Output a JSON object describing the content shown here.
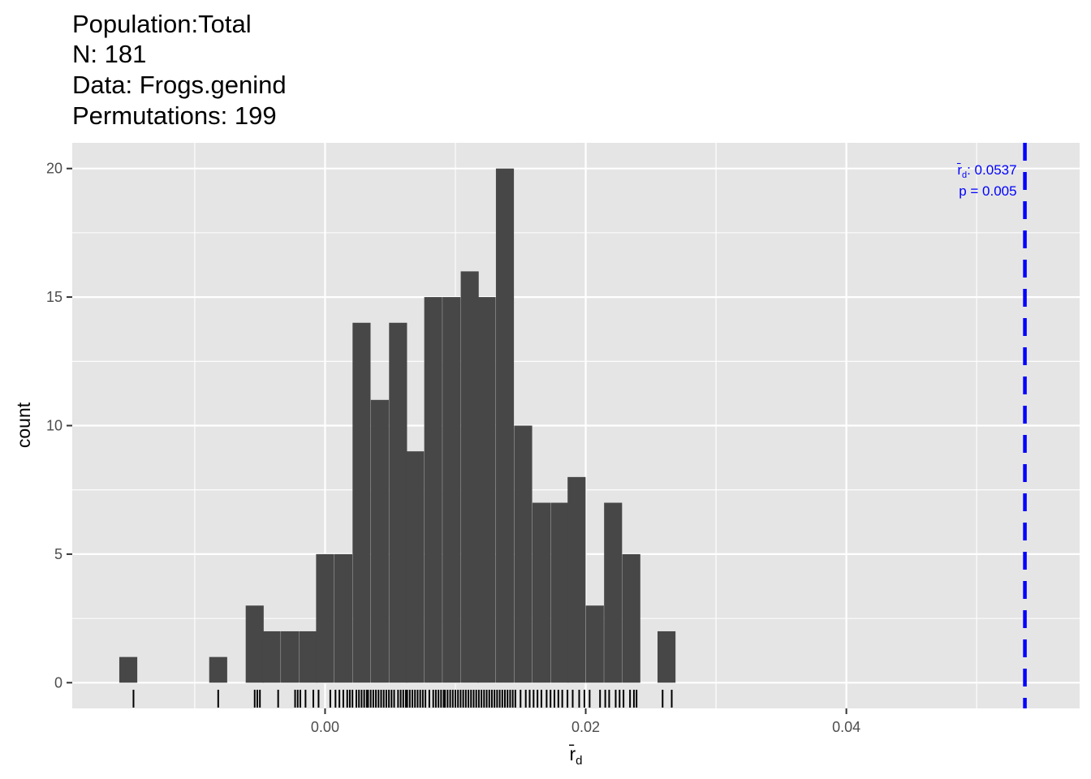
{
  "title_lines": [
    "Population:Total",
    "N: 181",
    "Data: Frogs.genind",
    "Permutations: 199"
  ],
  "chart_data": {
    "type": "bar",
    "title": "Population:Total\nN: 181\nData: Frogs.genind\nPermutations: 199",
    "xlabel_main": "r̄",
    "xlabel_sub": "d",
    "ylabel": "count",
    "xlim": [
      -0.0194,
      0.0579
    ],
    "ylim": [
      -1.0,
      21.0
    ],
    "x_ticks": [
      0.0,
      0.02,
      0.04
    ],
    "x_tick_labels": [
      "0.00",
      "0.02",
      "0.04"
    ],
    "y_ticks": [
      0,
      5,
      10,
      15,
      20
    ],
    "y_tick_labels": [
      "0",
      "5",
      "10",
      "15",
      "20"
    ],
    "bin_width": 0.00138,
    "bins": [
      {
        "x": -0.0151,
        "count": 1
      },
      {
        "x": -0.0137,
        "count": 0
      },
      {
        "x": -0.0123,
        "count": 0
      },
      {
        "x": -0.011,
        "count": 0
      },
      {
        "x": -0.0096,
        "count": 0
      },
      {
        "x": -0.0082,
        "count": 1
      },
      {
        "x": -0.0068,
        "count": 0
      },
      {
        "x": -0.0054,
        "count": 3
      },
      {
        "x": -0.0041,
        "count": 2
      },
      {
        "x": -0.0027,
        "count": 2
      },
      {
        "x": -0.0013,
        "count": 2
      },
      {
        "x": 0.0,
        "count": 5
      },
      {
        "x": 0.0014,
        "count": 5
      },
      {
        "x": 0.0028,
        "count": 14
      },
      {
        "x": 0.0042,
        "count": 11
      },
      {
        "x": 0.0056,
        "count": 14
      },
      {
        "x": 0.0069,
        "count": 9
      },
      {
        "x": 0.0083,
        "count": 15
      },
      {
        "x": 0.0097,
        "count": 15
      },
      {
        "x": 0.0111,
        "count": 16
      },
      {
        "x": 0.0124,
        "count": 15
      },
      {
        "x": 0.0138,
        "count": 20
      },
      {
        "x": 0.0152,
        "count": 10
      },
      {
        "x": 0.0166,
        "count": 7
      },
      {
        "x": 0.018,
        "count": 7
      },
      {
        "x": 0.0193,
        "count": 8
      },
      {
        "x": 0.0207,
        "count": 3
      },
      {
        "x": 0.0221,
        "count": 7
      },
      {
        "x": 0.0235,
        "count": 5
      },
      {
        "x": 0.0248,
        "count": 0
      },
      {
        "x": 0.0262,
        "count": 2
      }
    ],
    "rug_x": [
      -0.0147,
      -0.0082,
      -0.0054,
      -0.0052,
      -0.005,
      -0.0036,
      -0.0023,
      -0.0021,
      -0.0019,
      -0.0015,
      -0.0009,
      -0.0005,
      0.0004,
      0.0008,
      0.0011,
      0.0014,
      0.0017,
      0.0019,
      0.0021,
      0.0024,
      0.0026,
      0.0028,
      0.003,
      0.0032,
      0.0033,
      0.0035,
      0.0037,
      0.0039,
      0.0041,
      0.0043,
      0.0045,
      0.0047,
      0.0049,
      0.0051,
      0.0053,
      0.0056,
      0.0058,
      0.006,
      0.0062,
      0.0063,
      0.0065,
      0.0067,
      0.0069,
      0.0071,
      0.0073,
      0.0075,
      0.0077,
      0.008,
      0.0083,
      0.0085,
      0.0087,
      0.0089,
      0.0091,
      0.0092,
      0.0094,
      0.0096,
      0.0098,
      0.01,
      0.0102,
      0.0104,
      0.0106,
      0.0108,
      0.011,
      0.0112,
      0.0114,
      0.0116,
      0.0118,
      0.012,
      0.0122,
      0.0124,
      0.0126,
      0.0128,
      0.013,
      0.0132,
      0.0134,
      0.0136,
      0.0138,
      0.014,
      0.0142,
      0.0144,
      0.0146,
      0.015,
      0.0154,
      0.0157,
      0.016,
      0.0163,
      0.0166,
      0.017,
      0.0173,
      0.0176,
      0.0179,
      0.0182,
      0.0186,
      0.019,
      0.0195,
      0.0199,
      0.0203,
      0.0211,
      0.0215,
      0.0218,
      0.0223,
      0.0226,
      0.0229,
      0.0234,
      0.0237,
      0.0239,
      0.0259,
      0.0266
    ],
    "observed": {
      "value": 0.0537,
      "label_main": "r̄",
      "label_sub": "d",
      "label_value": ": 0.0537",
      "p_label": "p = 0.005",
      "line_color": "#0000ff",
      "line_style": "dashed"
    },
    "colors": {
      "panel_bg": "#e5e5e5",
      "grid": "#ffffff",
      "bar": "#474747",
      "rug": "#000000",
      "annotation": "#0000ff"
    },
    "grid": true,
    "legend": "none"
  }
}
